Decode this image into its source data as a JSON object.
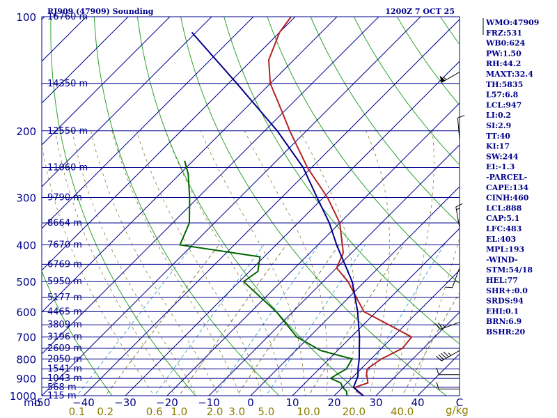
{
  "chart_data": {
    "type": "skew-t-log-p",
    "title": "RJ909 (47909) Sounding",
    "valid_time": "1200Z  7 OCT 25",
    "pressure_levels": [
      100,
      200,
      300,
      400,
      500,
      600,
      700,
      800,
      900,
      1000
    ],
    "pressure_labels": [
      "100",
      "200",
      "300",
      "400",
      "500",
      "600",
      "700",
      "800",
      "900",
      "1000"
    ],
    "pressure_unit": "mb",
    "plim": [
      100,
      1000
    ],
    "height_lines": [
      {
        "p": 100,
        "label": "16760 m"
      },
      {
        "p": 150,
        "label": "14350 m"
      },
      {
        "p": 200,
        "label": "12550 m"
      },
      {
        "p": 250,
        "label": "11060 m"
      },
      {
        "p": 300,
        "label": "9790 m"
      },
      {
        "p": 350,
        "label": "8664 m"
      },
      {
        "p": 400,
        "label": "7670 m"
      },
      {
        "p": 450,
        "label": "6769 m"
      },
      {
        "p": 500,
        "label": "5950 m"
      },
      {
        "p": 550,
        "label": "5177 m"
      },
      {
        "p": 600,
        "label": "4465 m"
      },
      {
        "p": 650,
        "label": "3809 m"
      },
      {
        "p": 700,
        "label": "3196 m"
      },
      {
        "p": 750,
        "label": "2609 m"
      },
      {
        "p": 800,
        "label": "2050 m"
      },
      {
        "p": 850,
        "label": "1541 m"
      },
      {
        "p": 900,
        "label": "1043 m"
      },
      {
        "p": 950,
        "label": "568 m"
      },
      {
        "p": 1000,
        "label": "115 m"
      }
    ],
    "temperature_ticks": [
      -50,
      -40,
      -30,
      -20,
      -10,
      0,
      10,
      20,
      30,
      40,
      50
    ],
    "temperature_labels": [
      "-50",
      "−40",
      "−30",
      "−20",
      "−10",
      "0",
      "10",
      "20",
      "30",
      "40",
      "C"
    ],
    "xlim_c_at_1000mb": [
      -50,
      50
    ],
    "mixing_ratio_ticks": [
      0.1,
      0.2,
      0.6,
      1.0,
      2.0,
      3.0,
      5.0,
      10.0,
      20.0,
      40.0
    ],
    "mixing_ratio_labels": [
      "0.1",
      "0.2",
      "0.6",
      "1.0",
      "2.0",
      "3.0",
      "5.0",
      "10.0",
      "20.0",
      "40.0"
    ],
    "mixing_ratio_unit": "g/kg",
    "dry_adiabats_theta_k": [
      240,
      260,
      280,
      300,
      320,
      340,
      360,
      380,
      400,
      420,
      440,
      460
    ],
    "moist_adiabats_start_c": [
      -10,
      0,
      10,
      20,
      30
    ],
    "series": [
      {
        "name": "Temperature",
        "color": "#b22222",
        "points": [
          {
            "p": 1000,
            "t": 27
          },
          {
            "p": 975,
            "t": 24.5
          },
          {
            "p": 950,
            "t": 23
          },
          {
            "p": 925,
            "t": 25
          },
          {
            "p": 875,
            "t": 22.5
          },
          {
            "p": 850,
            "t": 21.5
          },
          {
            "p": 800,
            "t": 22.5
          },
          {
            "p": 750,
            "t": 25
          },
          {
            "p": 700,
            "t": 24.5
          },
          {
            "p": 600,
            "t": 7
          },
          {
            "p": 500,
            "t": -4
          },
          {
            "p": 460,
            "t": -10
          },
          {
            "p": 420,
            "t": -12
          },
          {
            "p": 350,
            "t": -20
          },
          {
            "p": 300,
            "t": -29
          },
          {
            "p": 250,
            "t": -41
          },
          {
            "p": 200,
            "t": -54
          },
          {
            "p": 170,
            "t": -63
          },
          {
            "p": 150,
            "t": -70
          },
          {
            "p": 130,
            "t": -76
          },
          {
            "p": 110,
            "t": -80
          },
          {
            "p": 100,
            "t": -81
          }
        ]
      },
      {
        "name": "Dewpoint",
        "color": "#006400",
        "points": [
          {
            "p": 1000,
            "t": 23
          },
          {
            "p": 975,
            "t": 22
          },
          {
            "p": 950,
            "t": 20
          },
          {
            "p": 925,
            "t": 18.5
          },
          {
            "p": 900,
            "t": 15
          },
          {
            "p": 880,
            "t": 15.5
          },
          {
            "p": 850,
            "t": 16.5
          },
          {
            "p": 800,
            "t": 15.5
          },
          {
            "p": 760,
            "t": 6
          },
          {
            "p": 700,
            "t": -3
          },
          {
            "p": 600,
            "t": -14
          },
          {
            "p": 500,
            "t": -29
          },
          {
            "p": 470,
            "t": -28
          },
          {
            "p": 430,
            "t": -31
          },
          {
            "p": 400,
            "t": -53
          },
          {
            "p": 350,
            "t": -56
          },
          {
            "p": 300,
            "t": -62
          },
          {
            "p": 260,
            "t": -68
          },
          {
            "p": 240,
            "t": -72
          }
        ]
      },
      {
        "name": "Parcel path",
        "color": "#00008b",
        "points": [
          {
            "p": 1000,
            "t": 27
          },
          {
            "p": 975,
            "t": 24.8
          },
          {
            "p": 950,
            "t": 22.6
          },
          {
            "p": 888,
            "t": 21
          },
          {
            "p": 850,
            "t": 19.3
          },
          {
            "p": 800,
            "t": 17.2
          },
          {
            "p": 700,
            "t": 12
          },
          {
            "p": 600,
            "t": 5.5
          },
          {
            "p": 500,
            "t": -3
          },
          {
            "p": 400,
            "t": -15.5
          },
          {
            "p": 350,
            "t": -22.5
          },
          {
            "p": 300,
            "t": -31.5
          },
          {
            "p": 250,
            "t": -42
          },
          {
            "p": 200,
            "t": -57
          },
          {
            "p": 150,
            "t": -78
          },
          {
            "p": 110,
            "t": -101
          }
        ]
      }
    ],
    "wind_barbs": [
      {
        "p": 140,
        "direction_deg": 240,
        "speed_kt": 55
      },
      {
        "p": 210,
        "direction_deg": 355,
        "speed_kt": 10
      },
      {
        "p": 360,
        "direction_deg": 350,
        "speed_kt": 15
      },
      {
        "p": 460,
        "direction_deg": 200,
        "speed_kt": 10
      },
      {
        "p": 640,
        "direction_deg": 250,
        "speed_kt": 25
      },
      {
        "p": 760,
        "direction_deg": 240,
        "speed_kt": 45
      },
      {
        "p": 880,
        "direction_deg": 270,
        "speed_kt": 10
      },
      {
        "p": 960,
        "direction_deg": 270,
        "speed_kt": 10
      }
    ]
  },
  "indices": [
    "WMO:47909",
    "FRZ:531",
    "WB0:624",
    "PW:1.50",
    "RH:44.2",
    "MAXT:32.4",
    "TH:5835",
    "L57:6.8",
    "LCL:947",
    "LI:0.2",
    "SI:2.9",
    "TT:40",
    "KI:17",
    "SW:244",
    "EI:-1.3",
    "-PARCEL-",
    "CAPE:134",
    "CINH:460",
    "LCL:888",
    "CAP:5.1",
    "LFC:483",
    "EL:403",
    "MPL:193",
    "-WIND-",
    "STM:54/18",
    "HEL:77",
    "SHR+:0.0",
    "SRDS:94",
    "EHI:0.1",
    "BRN:6.9",
    "BSHR:20"
  ]
}
